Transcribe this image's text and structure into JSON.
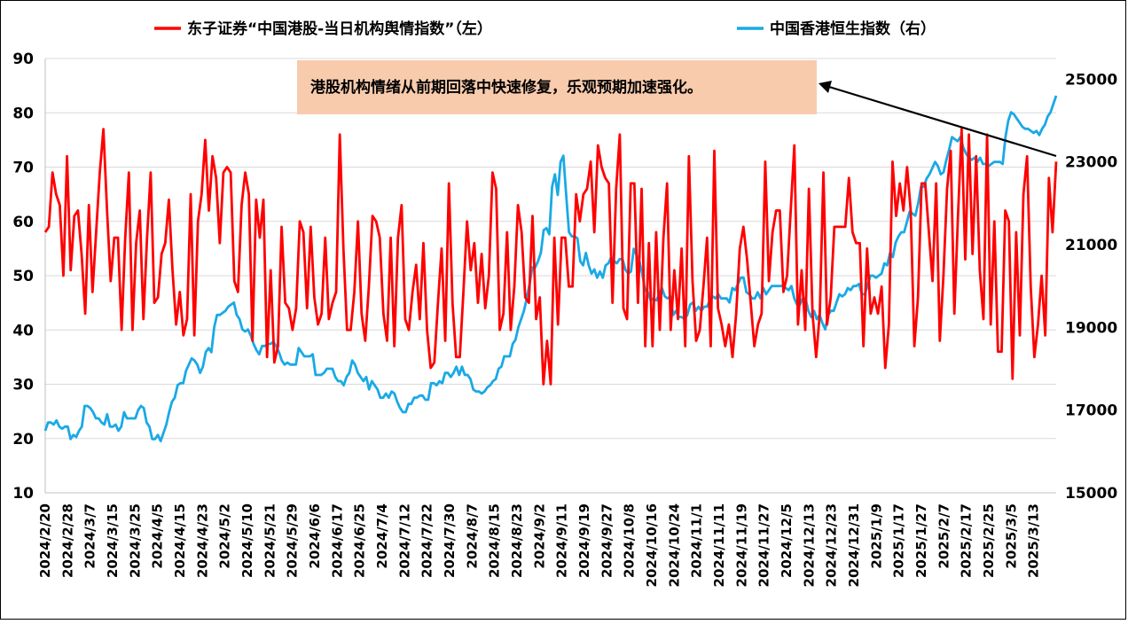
{
  "chart_data": {
    "type": "line",
    "title": "",
    "legend": {
      "position": "top",
      "entries": [
        {
          "name": "东子证券“中国港股-当日机构舆情指数”（左）",
          "color": "#ff0000"
        },
        {
          "name": "中国香港恒生指数（右）",
          "color": "#1aa9e6"
        }
      ]
    },
    "annotation": {
      "text": "港股机构情绪从前期回落中快速修复，乐观预期加速强化。",
      "box_color": "#f8cbad"
    },
    "grid": {
      "horizontal": true,
      "vertical": false
    },
    "y_left": {
      "range": [
        10,
        90
      ],
      "ticks": [
        "10",
        "20",
        "30",
        "40",
        "50",
        "60",
        "70",
        "80",
        "90"
      ]
    },
    "y_right": {
      "range": [
        15000,
        25500
      ],
      "ticks": [
        "15000",
        "17000",
        "19000",
        "21000",
        "23000",
        "25000"
      ]
    },
    "x_tick_labels": [
      "2024/2/20",
      "2024/2/28",
      "2024/3/7",
      "2024/3/15",
      "2024/3/25",
      "2024/4/5",
      "2024/4/15",
      "2024/4/23",
      "2024/5/2",
      "2024/5/10",
      "2024/5/21",
      "2024/5/29",
      "2024/6/6",
      "2024/6/17",
      "2024/6/25",
      "2024/7/4",
      "2024/7/12",
      "2024/7/22",
      "2024/7/30",
      "2024/8/7",
      "2024/8/15",
      "2024/8/23",
      "2024/9/2",
      "2024/9/11",
      "2024/9/19",
      "2024/9/27",
      "2024/10/8",
      "2024/10/16",
      "2024/10/24",
      "2024/11/1",
      "2024/11/11",
      "2024/11/19",
      "2024/11/27",
      "2024/12/5",
      "2024/12/13",
      "2024/12/23",
      "2024/12/31",
      "2025/1/9",
      "2025/1/17",
      "2025/1/27",
      "2025/2/7",
      "2025/2/17",
      "2025/2/25",
      "2025/3/5",
      "2025/3/13"
    ],
    "series": [
      {
        "name": "东子证券“中国港股-当日机构舆情指数”（左）",
        "axis": "left",
        "color": "#ff0000",
        "values": [
          58,
          59,
          69,
          65,
          63,
          50,
          72,
          51,
          61,
          62,
          54,
          43,
          63,
          47,
          58,
          69,
          77,
          62,
          49,
          57,
          57,
          40,
          57,
          69,
          40,
          56,
          62,
          42,
          57,
          69,
          45,
          46,
          54,
          56,
          64,
          51,
          41,
          47,
          39,
          42,
          65,
          39,
          60,
          65,
          75,
          62,
          72,
          68,
          56,
          69,
          70,
          69,
          49,
          47,
          63,
          69,
          65,
          38,
          64,
          57,
          64,
          35,
          51,
          34,
          37,
          59,
          45,
          44,
          40,
          44,
          60,
          58,
          44,
          59,
          46,
          41,
          43,
          57,
          42,
          45,
          47,
          76,
          55,
          40,
          40,
          47,
          60,
          43,
          38,
          48,
          61,
          60,
          57,
          43,
          38,
          57,
          37,
          57,
          63,
          42,
          40,
          47,
          52,
          42,
          56,
          40,
          33,
          34,
          45,
          55,
          38,
          67,
          45,
          35,
          35,
          47,
          60,
          51,
          56,
          45,
          54,
          44,
          50,
          69,
          66,
          40,
          43,
          58,
          40,
          48,
          63,
          58,
          46,
          45,
          61,
          42,
          46,
          30,
          38,
          30,
          57,
          41,
          57,
          57,
          48,
          48,
          65,
          60,
          65,
          66,
          71,
          58,
          74,
          70,
          68,
          67,
          45,
          66,
          76,
          44,
          42,
          67,
          67,
          45,
          66,
          37,
          56,
          37,
          58,
          40,
          57,
          67,
          40,
          51,
          42,
          55,
          37,
          72,
          49,
          38,
          40,
          48,
          57,
          37,
          73,
          44,
          41,
          37,
          41,
          35,
          43,
          55,
          59,
          53,
          45,
          37,
          41,
          43,
          71,
          49,
          58,
          62,
          62,
          47,
          50,
          62,
          74,
          41,
          51,
          40,
          66,
          43,
          35,
          43,
          69,
          41,
          46,
          59,
          59,
          59,
          59,
          68,
          58,
          56,
          56,
          37,
          55,
          43,
          46,
          43,
          48,
          33,
          41,
          71,
          61,
          67,
          62,
          70,
          62,
          37,
          46,
          67,
          67,
          58,
          49,
          67,
          38,
          50,
          66,
          73,
          43,
          61,
          77,
          53,
          76,
          54,
          72,
          51,
          42,
          76,
          41,
          60,
          36,
          36,
          62,
          60,
          31,
          58,
          39,
          65,
          72,
          48,
          35,
          41,
          50,
          39,
          68,
          58,
          71
        ]
      },
      {
        "name": "中国香港恒生指数（右）",
        "axis": "right",
        "color": "#1aa9e6",
        "values": [
          16500,
          16700,
          16700,
          16650,
          16750,
          16600,
          16550,
          16600,
          16600,
          16300,
          16400,
          16350,
          16500,
          16600,
          17100,
          17100,
          17050,
          16950,
          16800,
          16800,
          16700,
          16650,
          16900,
          16600,
          16600,
          16650,
          16500,
          16600,
          16950,
          16800,
          16800,
          16800,
          16800,
          17000,
          17100,
          17050,
          16700,
          16600,
          16300,
          16300,
          16400,
          16250,
          16450,
          16650,
          16950,
          17200,
          17300,
          17600,
          17650,
          17650,
          17950,
          18100,
          18250,
          18200,
          18100,
          17900,
          18050,
          18400,
          18500,
          18400,
          19000,
          19300,
          19300,
          19350,
          19400,
          19500,
          19550,
          19600,
          19300,
          19200,
          18950,
          18900,
          18950,
          18800,
          18600,
          18450,
          18350,
          18550,
          18550,
          18600,
          18600,
          18650,
          18550,
          18400,
          18200,
          18100,
          18150,
          18100,
          18100,
          18100,
          18500,
          18400,
          18300,
          18300,
          18300,
          18350,
          17850,
          17850,
          17850,
          17900,
          18000,
          18000,
          18000,
          17800,
          17700,
          17700,
          17600,
          17800,
          17900,
          18200,
          18100,
          17900,
          17800,
          17700,
          17800,
          17500,
          17700,
          17600,
          17500,
          17300,
          17300,
          17400,
          17300,
          17450,
          17400,
          17200,
          17050,
          16950,
          16950,
          17150,
          17150,
          17300,
          17300,
          17350,
          17350,
          17250,
          17250,
          17650,
          17650,
          17600,
          17700,
          17650,
          17900,
          17900,
          17800,
          17900,
          18050,
          17850,
          18050,
          17850,
          17850,
          17750,
          17500,
          17450,
          17450,
          17400,
          17450,
          17550,
          17600,
          17700,
          17750,
          18000,
          18050,
          18300,
          18300,
          18300,
          18600,
          18700,
          19000,
          19200,
          19400,
          19700,
          20050,
          20450,
          20450,
          20600,
          20800,
          21350,
          21400,
          21250,
          22400,
          22700,
          22200,
          23000,
          23150,
          22200,
          21300,
          21200,
          21200,
          21150,
          20600,
          20500,
          20800,
          20500,
          20300,
          20400,
          20200,
          20350,
          20200,
          20500,
          20550,
          20700,
          20600,
          20550,
          20650,
          20650,
          20400,
          20300,
          20350,
          20900,
          20750,
          20600,
          20300,
          19900,
          19850,
          19650,
          19700,
          19650,
          19800,
          19950,
          19750,
          19700,
          19750,
          19300,
          19400,
          19250,
          19250,
          19200,
          19300,
          19550,
          19600,
          19400,
          19500,
          19400,
          19500,
          19500,
          19650,
          19750,
          19700,
          19800,
          19700,
          19700,
          19700,
          19600,
          19950,
          19900,
          20050,
          20200,
          20200,
          19850,
          19800,
          19700,
          19700,
          19850,
          19700,
          19950,
          19800,
          19900,
          20000,
          20000,
          20000,
          20000,
          20000,
          19950,
          19900,
          20000,
          19700,
          19550,
          19550,
          19700,
          19700,
          19400,
          19250,
          19400,
          19200,
          19300,
          19100,
          18950,
          19300,
          19400,
          19400,
          19600,
          19800,
          19750,
          19800,
          19950,
          19900,
          20000,
          20000,
          20050,
          19800,
          19800,
          20000,
          20250,
          20250,
          20200,
          20250,
          20300,
          20550,
          20500,
          20800,
          20700,
          21050,
          21200,
          21300,
          21300,
          21550,
          21800,
          21750,
          21700,
          22000,
          22400,
          22400,
          22600,
          22700,
          22850,
          23000,
          22900,
          22700,
          22750,
          23050,
          23300,
          23600,
          23550,
          23500,
          23600,
          23350,
          23200,
          23100,
          23050,
          23100,
          23000,
          23100,
          22950,
          22950,
          22900,
          22950,
          23000,
          23000,
          23000,
          22950,
          23600,
          24000,
          24200,
          24150,
          24050,
          23950,
          23850,
          23800,
          23800,
          23750,
          23700,
          23750,
          23650,
          23800,
          23900,
          24100,
          24200,
          24400,
          24600
        ]
      }
    ]
  }
}
